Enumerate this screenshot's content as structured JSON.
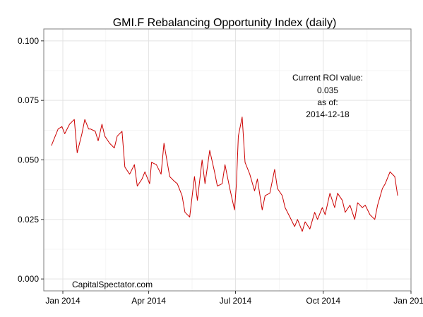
{
  "chart_data": {
    "type": "line",
    "title": "GMI.F Rebalancing Opportunity Index (daily)",
    "xlabel": "",
    "ylabel": "",
    "x_range": [
      "2013-12-12",
      "2015-01-01"
    ],
    "ylim": [
      -0.005,
      0.105
    ],
    "y_ticks": [
      0.0,
      0.025,
      0.05,
      0.075,
      0.1
    ],
    "y_tick_labels": [
      "0.000",
      "0.025",
      "0.050",
      "0.075",
      "0.100"
    ],
    "x_ticks": [
      "2014-01-01",
      "2014-04-01",
      "2014-07-01",
      "2014-10-01",
      "2015-01-01"
    ],
    "x_tick_labels": [
      "Jan 2014",
      "Apr 2014",
      "Jul 2014",
      "Oct 2014",
      "Jan 2015"
    ],
    "grid": true,
    "legend": "none",
    "series": [
      {
        "color": "#cc0000",
        "x": [
          "2013-12-20",
          "2013-12-23",
          "2013-12-27",
          "2013-12-31",
          "2014-01-03",
          "2014-01-08",
          "2014-01-13",
          "2014-01-16",
          "2014-01-21",
          "2014-01-24",
          "2014-01-28",
          "2014-01-30",
          "2014-02-04",
          "2014-02-07",
          "2014-02-11",
          "2014-02-14",
          "2014-02-19",
          "2014-02-24",
          "2014-02-27",
          "2014-03-04",
          "2014-03-07",
          "2014-03-12",
          "2014-03-17",
          "2014-03-20",
          "2014-03-25",
          "2014-03-28",
          "2014-04-02",
          "2014-04-04",
          "2014-04-09",
          "2014-04-14",
          "2014-04-17",
          "2014-04-23",
          "2014-04-28",
          "2014-05-01",
          "2014-05-06",
          "2014-05-09",
          "2014-05-14",
          "2014-05-19",
          "2014-05-22",
          "2014-05-27",
          "2014-05-30",
          "2014-06-04",
          "2014-06-09",
          "2014-06-12",
          "2014-06-17",
          "2014-06-20",
          "2014-06-25",
          "2014-06-30",
          "2014-07-02",
          "2014-07-04",
          "2014-07-08",
          "2014-07-11",
          "2014-07-16",
          "2014-07-21",
          "2014-07-24",
          "2014-07-29",
          "2014-08-01",
          "2014-08-06",
          "2014-08-11",
          "2014-08-14",
          "2014-08-19",
          "2014-08-22",
          "2014-08-27",
          "2014-09-01",
          "2014-09-04",
          "2014-09-09",
          "2014-09-12",
          "2014-09-17",
          "2014-09-22",
          "2014-09-25",
          "2014-09-30",
          "2014-10-03",
          "2014-10-08",
          "2014-10-13",
          "2014-10-16",
          "2014-10-21",
          "2014-10-24",
          "2014-10-29",
          "2014-11-03",
          "2014-11-06",
          "2014-11-11",
          "2014-11-14",
          "2014-11-19",
          "2014-11-24",
          "2014-11-27",
          "2014-12-02",
          "2014-12-05",
          "2014-12-10",
          "2014-12-15",
          "2014-12-18"
        ],
        "y": [
          0.056,
          0.059,
          0.063,
          0.064,
          0.061,
          0.065,
          0.067,
          0.053,
          0.061,
          0.067,
          0.063,
          0.063,
          0.062,
          0.058,
          0.065,
          0.06,
          0.057,
          0.055,
          0.06,
          0.062,
          0.047,
          0.044,
          0.048,
          0.039,
          0.042,
          0.045,
          0.04,
          0.049,
          0.048,
          0.044,
          0.057,
          0.043,
          0.041,
          0.04,
          0.035,
          0.028,
          0.026,
          0.043,
          0.033,
          0.05,
          0.04,
          0.054,
          0.045,
          0.039,
          0.04,
          0.048,
          0.038,
          0.029,
          0.04,
          0.06,
          0.068,
          0.049,
          0.044,
          0.037,
          0.042,
          0.029,
          0.035,
          0.036,
          0.046,
          0.038,
          0.035,
          0.03,
          0.026,
          0.022,
          0.025,
          0.02,
          0.024,
          0.021,
          0.028,
          0.025,
          0.03,
          0.027,
          0.036,
          0.03,
          0.036,
          0.033,
          0.028,
          0.031,
          0.025,
          0.032,
          0.03,
          0.031,
          0.027,
          0.025,
          0.031,
          0.038,
          0.04,
          0.045,
          0.043,
          0.035
        ]
      }
    ]
  },
  "annotation": {
    "label": "Current ROI value:",
    "value": "0.035",
    "value_color": "#0000ff",
    "as_of_label": "as of:",
    "date": "2014-12-18"
  },
  "watermark": "CapitalSpectator.com"
}
